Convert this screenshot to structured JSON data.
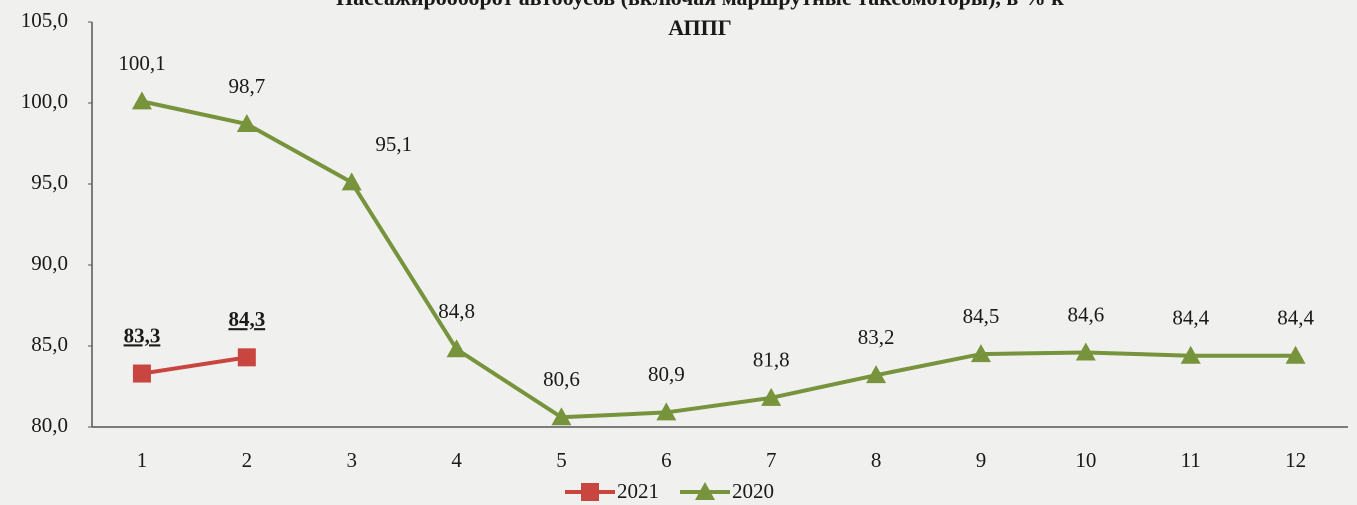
{
  "chart_data": {
    "type": "line",
    "title": "Пассажирооборот автобусов (включая маршрутные таксомоторы), в % к АППГ",
    "categories": [
      "1",
      "2",
      "3",
      "4",
      "5",
      "6",
      "7",
      "8",
      "9",
      "10",
      "11",
      "12"
    ],
    "series": [
      {
        "name": "2021",
        "color": "#c9453f",
        "marker": "square",
        "values": [
          83.3,
          84.3,
          null,
          null,
          null,
          null,
          null,
          null,
          null,
          null,
          null,
          null
        ],
        "value_labels": [
          "83,3",
          "84,3",
          null,
          null,
          null,
          null,
          null,
          null,
          null,
          null,
          null,
          null
        ]
      },
      {
        "name": "2020",
        "color": "#77933c",
        "marker": "triangle",
        "values": [
          100.1,
          98.7,
          95.1,
          84.8,
          80.6,
          80.9,
          81.8,
          83.2,
          84.5,
          84.6,
          84.4,
          84.4
        ],
        "value_labels": [
          "100,1",
          "98,7",
          "95,1",
          "84,8",
          "80,6",
          "80,9",
          "81,8",
          "83,2",
          "84,5",
          "84,6",
          "84,4",
          "84,4"
        ]
      }
    ],
    "ylim": [
      80,
      105
    ],
    "yticks": [
      {
        "value": 80,
        "label": "80,0"
      },
      {
        "value": 85,
        "label": "85,0"
      },
      {
        "value": 90,
        "label": "90,0"
      },
      {
        "value": 95,
        "label": "95,0"
      },
      {
        "value": 100,
        "label": "100,0"
      },
      {
        "value": 105,
        "label": "105,0"
      }
    ],
    "grid": false,
    "legend": "bottom"
  }
}
